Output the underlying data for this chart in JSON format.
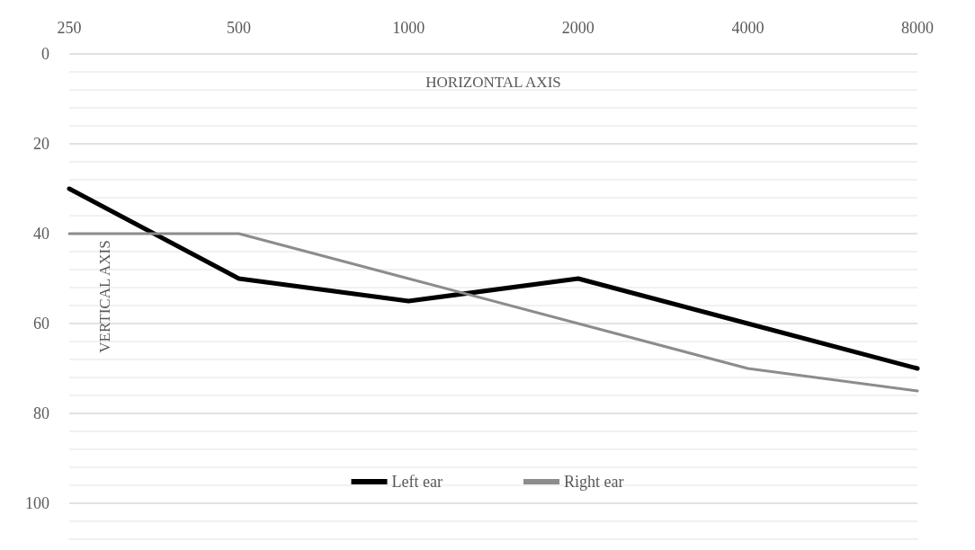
{
  "chart_data": {
    "type": "line",
    "xlabel": "HORIZONTAL AXIS",
    "ylabel": "VERTICAL AXIS",
    "categories": [
      "250",
      "500",
      "1000",
      "2000",
      "4000",
      "8000"
    ],
    "series": [
      {
        "name": "Left ear",
        "color": "#000000",
        "values": [
          30,
          50,
          55,
          50,
          60,
          70
        ]
      },
      {
        "name": "Right ear",
        "color": "#8c8c8c",
        "values": [
          40,
          40,
          50,
          60,
          70,
          75
        ]
      }
    ],
    "ylim": [
      108,
      0
    ],
    "yticks": [
      0,
      20,
      40,
      60,
      80,
      100
    ],
    "grid": "y",
    "legend": "bottom",
    "marker": "none",
    "line_style": "solid"
  }
}
